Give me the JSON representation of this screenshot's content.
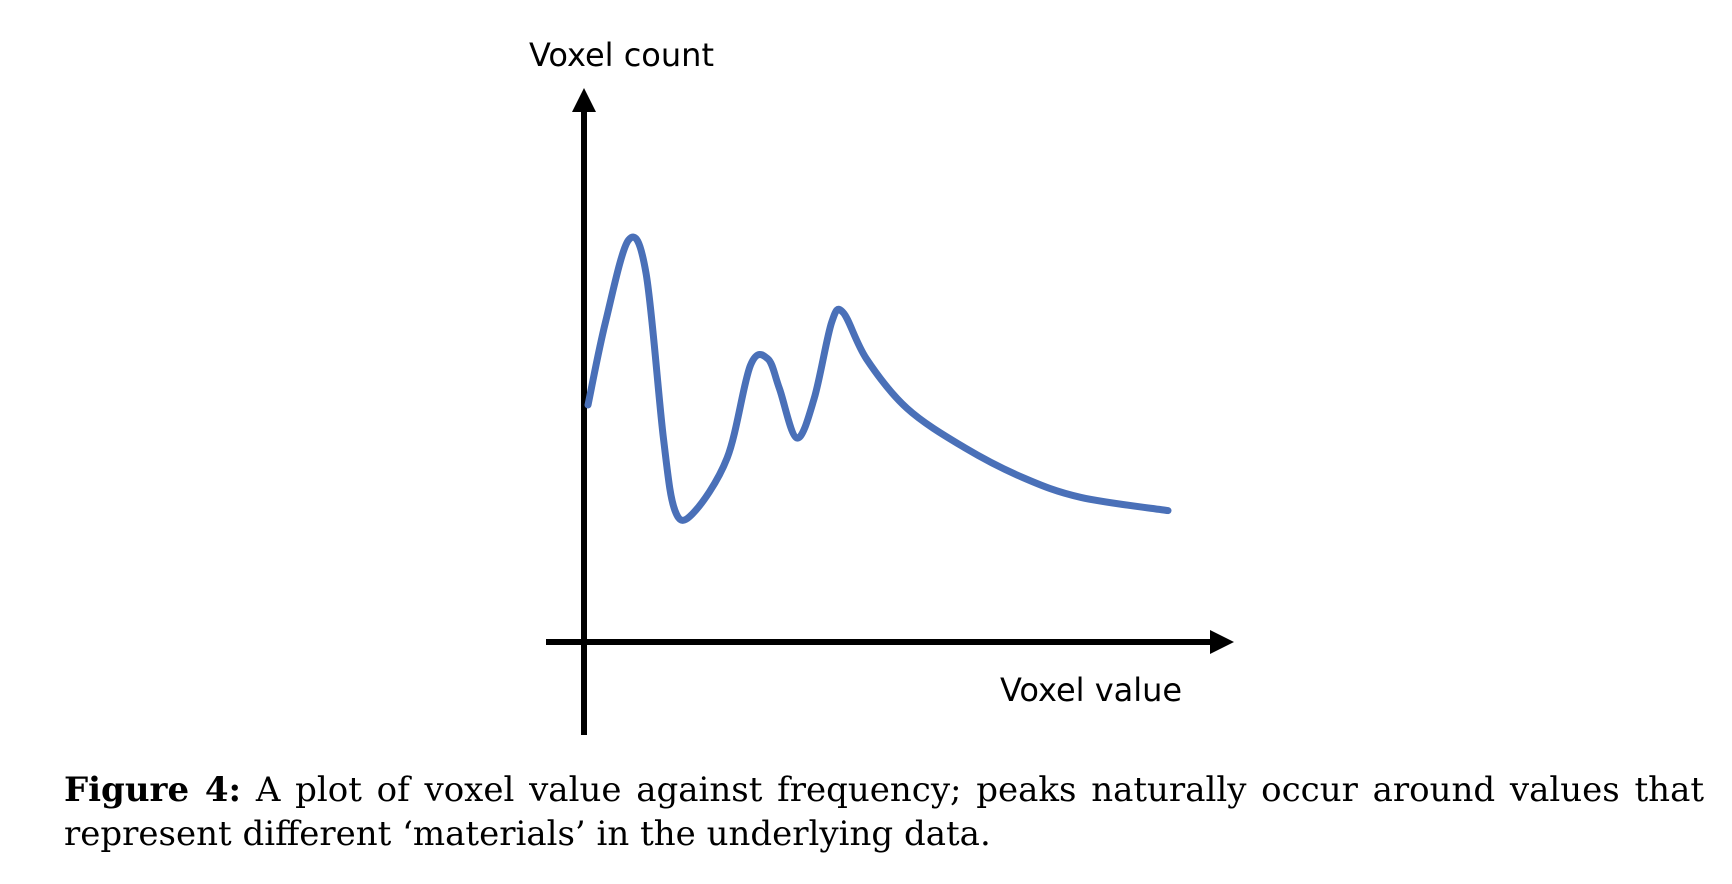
{
  "chart_data": {
    "type": "line",
    "title": "",
    "xlabel": "Voxel value",
    "ylabel": "Voxel count",
    "grid": false,
    "legend": "none",
    "xlim": [
      0,
      100
    ],
    "ylim": [
      0,
      100
    ],
    "series": [
      {
        "values_xy": [
          [
            0,
            50
          ],
          [
            3,
            75
          ],
          [
            7,
            100
          ],
          [
            10,
            90
          ],
          [
            13,
            40
          ],
          [
            15,
            18
          ],
          [
            18,
            17
          ],
          [
            24,
            34
          ],
          [
            28,
            62
          ],
          [
            31,
            64
          ],
          [
            33,
            55
          ],
          [
            36,
            40
          ],
          [
            39,
            52
          ],
          [
            42,
            75
          ],
          [
            44,
            78
          ],
          [
            48,
            64
          ],
          [
            55,
            49
          ],
          [
            65,
            37
          ],
          [
            75,
            28
          ],
          [
            85,
            22
          ],
          [
            100,
            18
          ]
        ]
      }
    ],
    "colors": {
      "line": "#4a70b8",
      "axes": "#000000"
    }
  },
  "caption": {
    "label": "Figure 4:",
    "text": " A plot of voxel value against frequency; peaks naturally occur around values that represent different ‘materials’ in the underlying data."
  }
}
